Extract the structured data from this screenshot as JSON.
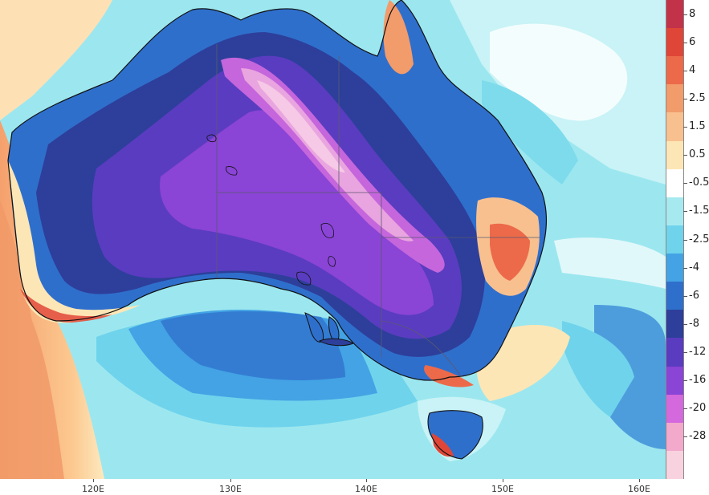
{
  "map": {
    "region": "Australia",
    "colorbar": {
      "labels": [
        "8",
        "6",
        "4",
        "2.5",
        "1.5",
        "0.5",
        "-0.5",
        "-1.5",
        "-2.5",
        "-4",
        "-6",
        "-8",
        "-12",
        "-16",
        "-20",
        "-28"
      ],
      "colors": [
        "#c2334a",
        "#e04637",
        "#ec6a4a",
        "#f29b6b",
        "#f8c08f",
        "#fde6b5",
        "#ffffff",
        "#a6eaf0",
        "#6fd3ec",
        "#43a3e4",
        "#2f6fcc",
        "#2d3f9a",
        "#5a3cc0",
        "#8a44d6",
        "#d468dd",
        "#f2a9cc",
        "#f8d2de"
      ]
    },
    "x_axis": {
      "labels": [
        "120E",
        "130E",
        "140E",
        "150E",
        "160E"
      ]
    }
  }
}
